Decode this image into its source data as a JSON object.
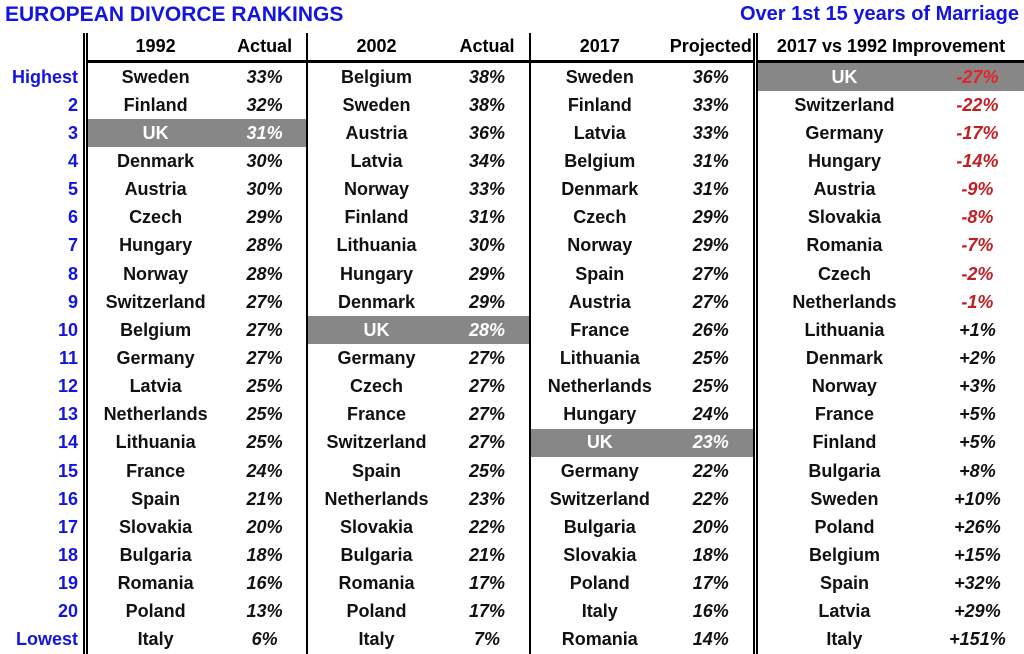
{
  "colors": {
    "blue": "#1414E1",
    "hl": "#878787",
    "neg": "#C01E23",
    "neghl": "#E3242B"
  },
  "chart_data": {
    "type": "table",
    "title": "EUROPEAN DIVORCE RANKINGS",
    "subtitle": "Over 1st 15 years of Marriage",
    "rank_labels": [
      "Highest",
      "2",
      "3",
      "4",
      "5",
      "6",
      "7",
      "8",
      "9",
      "10",
      "11",
      "12",
      "13",
      "14",
      "15",
      "16",
      "17",
      "18",
      "19",
      "20",
      "Lowest"
    ],
    "sections": [
      {
        "year_header": "1992",
        "value_header": "Actual",
        "rows": [
          {
            "country": "Sweden",
            "value": "33%"
          },
          {
            "country": "Finland",
            "value": "32%"
          },
          {
            "country": "UK",
            "value": "31%",
            "highlight": true
          },
          {
            "country": "Denmark",
            "value": "30%"
          },
          {
            "country": "Austria",
            "value": "30%"
          },
          {
            "country": "Czech",
            "value": "29%"
          },
          {
            "country": "Hungary",
            "value": "28%"
          },
          {
            "country": "Norway",
            "value": "28%"
          },
          {
            "country": "Switzerland",
            "value": "27%"
          },
          {
            "country": "Belgium",
            "value": "27%"
          },
          {
            "country": "Germany",
            "value": "27%"
          },
          {
            "country": "Latvia",
            "value": "25%"
          },
          {
            "country": "Netherlands",
            "value": "25%"
          },
          {
            "country": "Lithuania",
            "value": "25%"
          },
          {
            "country": "France",
            "value": "24%"
          },
          {
            "country": "Spain",
            "value": "21%"
          },
          {
            "country": "Slovakia",
            "value": "20%"
          },
          {
            "country": "Bulgaria",
            "value": "18%"
          },
          {
            "country": "Romania",
            "value": "16%"
          },
          {
            "country": "Poland",
            "value": "13%"
          },
          {
            "country": "Italy",
            "value": "6%"
          }
        ]
      },
      {
        "year_header": "2002",
        "value_header": "Actual",
        "rows": [
          {
            "country": "Belgium",
            "value": "38%"
          },
          {
            "country": "Sweden",
            "value": "38%"
          },
          {
            "country": "Austria",
            "value": "36%"
          },
          {
            "country": "Latvia",
            "value": "34%"
          },
          {
            "country": "Norway",
            "value": "33%"
          },
          {
            "country": "Finland",
            "value": "31%"
          },
          {
            "country": "Lithuania",
            "value": "30%"
          },
          {
            "country": "Hungary",
            "value": "29%"
          },
          {
            "country": "Denmark",
            "value": "29%"
          },
          {
            "country": "UK",
            "value": "28%",
            "highlight": true
          },
          {
            "country": "Germany",
            "value": "27%"
          },
          {
            "country": "Czech",
            "value": "27%"
          },
          {
            "country": "France",
            "value": "27%"
          },
          {
            "country": "Switzerland",
            "value": "27%"
          },
          {
            "country": "Spain",
            "value": "25%"
          },
          {
            "country": "Netherlands",
            "value": "23%"
          },
          {
            "country": "Slovakia",
            "value": "22%"
          },
          {
            "country": "Bulgaria",
            "value": "21%"
          },
          {
            "country": "Romania",
            "value": "17%"
          },
          {
            "country": "Poland",
            "value": "17%"
          },
          {
            "country": "Italy",
            "value": "7%"
          }
        ]
      },
      {
        "year_header": "2017",
        "value_header": "Projected",
        "rows": [
          {
            "country": "Sweden",
            "value": "36%"
          },
          {
            "country": "Finland",
            "value": "33%"
          },
          {
            "country": "Latvia",
            "value": "33%"
          },
          {
            "country": "Belgium",
            "value": "31%"
          },
          {
            "country": "Denmark",
            "value": "31%"
          },
          {
            "country": "Czech",
            "value": "29%"
          },
          {
            "country": "Norway",
            "value": "29%"
          },
          {
            "country": "Spain",
            "value": "27%"
          },
          {
            "country": "Austria",
            "value": "27%"
          },
          {
            "country": "France",
            "value": "26%"
          },
          {
            "country": "Lithuania",
            "value": "25%"
          },
          {
            "country": "Netherlands",
            "value": "25%"
          },
          {
            "country": "Hungary",
            "value": "24%"
          },
          {
            "country": "UK",
            "value": "23%",
            "highlight": true
          },
          {
            "country": "Germany",
            "value": "22%"
          },
          {
            "country": "Switzerland",
            "value": "22%"
          },
          {
            "country": "Bulgaria",
            "value": "20%"
          },
          {
            "country": "Slovakia",
            "value": "18%"
          },
          {
            "country": "Poland",
            "value": "17%"
          },
          {
            "country": "Italy",
            "value": "16%"
          },
          {
            "country": "Romania",
            "value": "14%"
          }
        ]
      },
      {
        "header": "2017 vs 1992 Improvement",
        "rows": [
          {
            "country": "UK",
            "value": "-27%",
            "highlight": true
          },
          {
            "country": "Switzerland",
            "value": "-22%"
          },
          {
            "country": "Germany",
            "value": "-17%"
          },
          {
            "country": "Hungary",
            "value": "-14%"
          },
          {
            "country": "Austria",
            "value": "-9%"
          },
          {
            "country": "Slovakia",
            "value": "-8%"
          },
          {
            "country": "Romania",
            "value": "-7%"
          },
          {
            "country": "Czech",
            "value": "-2%"
          },
          {
            "country": "Netherlands",
            "value": "-1%"
          },
          {
            "country": "Lithuania",
            "value": "+1%"
          },
          {
            "country": "Denmark",
            "value": "+2%"
          },
          {
            "country": "Norway",
            "value": "+3%"
          },
          {
            "country": "France",
            "value": "+5%"
          },
          {
            "country": "Finland",
            "value": "+5%"
          },
          {
            "country": "Bulgaria",
            "value": "+8%"
          },
          {
            "country": "Sweden",
            "value": "+10%"
          },
          {
            "country": "Poland",
            "value": "+26%"
          },
          {
            "country": "Belgium",
            "value": "+15%"
          },
          {
            "country": "Spain",
            "value": "+32%"
          },
          {
            "country": "Latvia",
            "value": "+29%"
          },
          {
            "country": "Italy",
            "value": "+151%"
          }
        ]
      }
    ]
  }
}
